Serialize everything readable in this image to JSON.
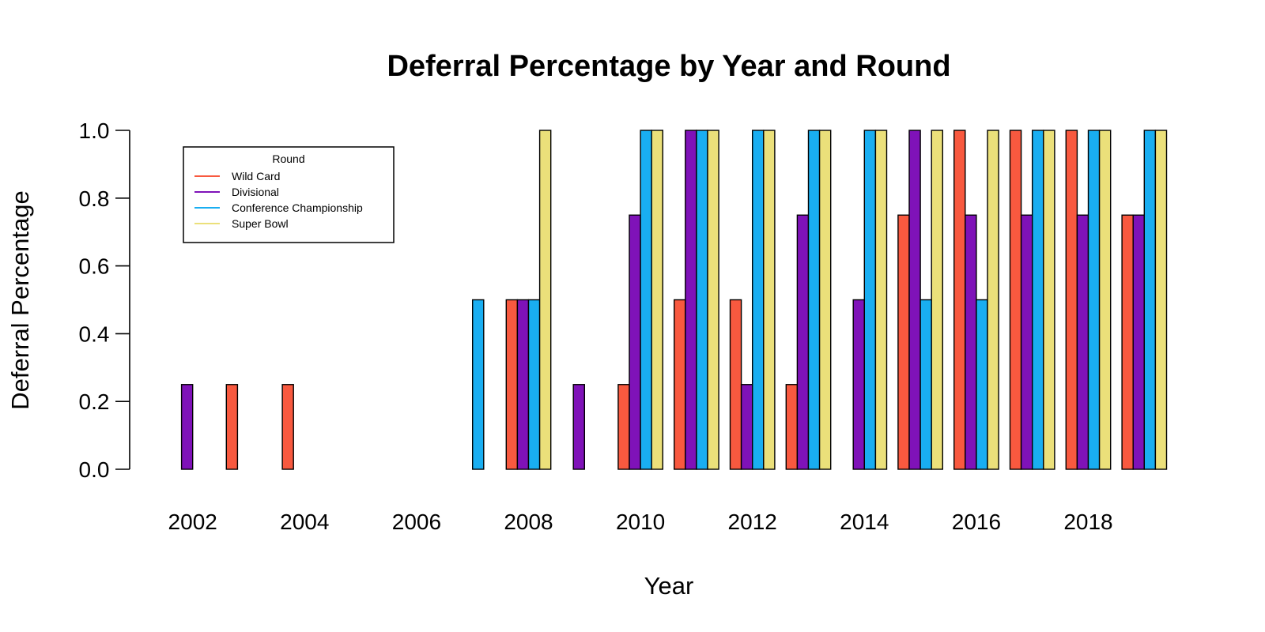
{
  "chart_data": {
    "type": "bar",
    "title": "Deferral Percentage by Year and Round",
    "xlabel": "Year",
    "ylabel": "Deferral Percentage",
    "ylim": [
      0,
      1
    ],
    "yticks": [
      "0.0",
      "0.2",
      "0.4",
      "0.6",
      "0.8",
      "1.0"
    ],
    "categories": [
      2002,
      2003,
      2004,
      2005,
      2006,
      2007,
      2008,
      2009,
      2010,
      2011,
      2012,
      2013,
      2014,
      2015,
      2016,
      2017,
      2018,
      2019
    ],
    "xtick_labels": [
      "2002",
      "2004",
      "2006",
      "2008",
      "2010",
      "2012",
      "2014",
      "2016",
      "2018"
    ],
    "grid": false,
    "legend": {
      "title": "Round",
      "placement": "top-left"
    },
    "series": [
      {
        "name": "Wild Card",
        "color": "#F8593F",
        "values": [
          0,
          0.25,
          0.25,
          0,
          0,
          0,
          0.5,
          0,
          0.25,
          0.5,
          0.5,
          0.25,
          0,
          0.75,
          1.0,
          1.0,
          1.0,
          0.75
        ]
      },
      {
        "name": "Divisional",
        "color": "#7F12B8",
        "values": [
          0.25,
          0,
          0,
          0,
          0,
          0,
          0.5,
          0.25,
          0.75,
          1.0,
          0.25,
          0.75,
          0.5,
          1.0,
          0.75,
          0.75,
          0.75,
          0.75
        ]
      },
      {
        "name": "Conference Championship",
        "color": "#19AEF1",
        "values": [
          0,
          0,
          0,
          0,
          0,
          0.5,
          0.5,
          0,
          1.0,
          1.0,
          1.0,
          1.0,
          1.0,
          0.5,
          0.5,
          1.0,
          1.0,
          1.0
        ]
      },
      {
        "name": "Super Bowl",
        "color": "#EBE07A",
        "values": [
          0,
          0,
          0,
          0,
          0,
          0,
          1.0,
          0,
          1.0,
          1.0,
          1.0,
          1.0,
          1.0,
          1.0,
          1.0,
          1.0,
          1.0,
          1.0
        ]
      }
    ]
  }
}
